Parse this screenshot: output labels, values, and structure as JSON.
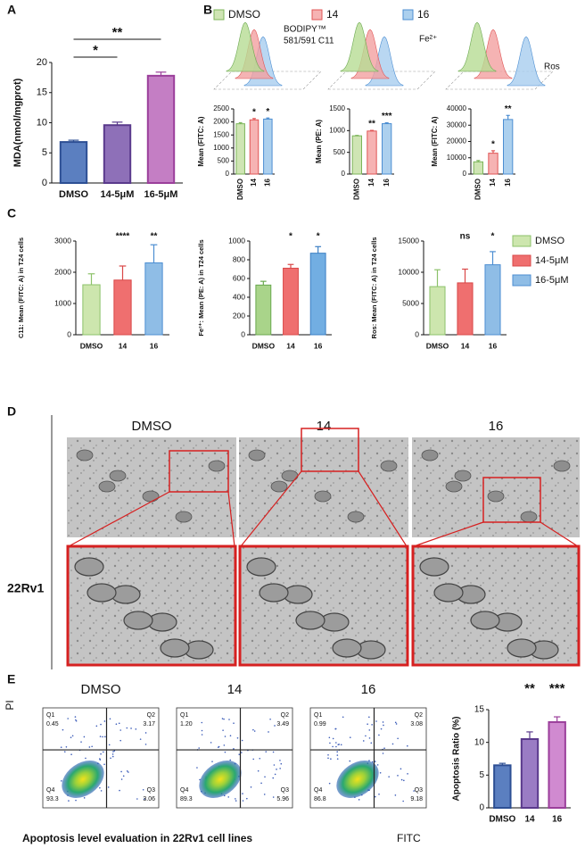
{
  "panels": [
    "A",
    "B",
    "C",
    "D",
    "E"
  ],
  "chart_data": [
    {
      "type": "bar",
      "ylabel": "MDA(nmol/mgprot)",
      "categories": [
        "DMSO",
        "14-5μM",
        "16-5μM"
      ],
      "values": [
        6.8,
        9.6,
        17.8
      ],
      "errors": [
        0.3,
        0.5,
        0.6
      ],
      "colors": [
        "#5b7fc0",
        "#8e70b8",
        "#c47ec4"
      ],
      "edge_colors": [
        "#2d4f94",
        "#5a3a8c",
        "#9b3f9b"
      ],
      "ylim": [
        0,
        20
      ],
      "yticks": [
        0,
        5,
        10,
        15,
        20
      ],
      "brackets": [
        "*",
        "**"
      ]
    },
    {
      "type": "bar",
      "ylabel": "Mean (FITC: A)",
      "categories": [
        "DMSO",
        "14",
        "16"
      ],
      "values": [
        1930,
        2080,
        2110
      ],
      "errors": [
        40,
        50,
        40
      ],
      "colors": [
        "#cfe5b4",
        "#f6b3b3",
        "#acd0ee"
      ],
      "edge_colors": [
        "#7cb55a",
        "#e05555",
        "#4c8ed2"
      ],
      "ylim": [
        0,
        2500
      ],
      "yticks": [
        0,
        500,
        1000,
        1500,
        2000,
        2500
      ],
      "annotations": [
        null,
        "*",
        "*"
      ]
    },
    {
      "type": "bar",
      "ylabel": "Mean (PE: A)",
      "categories": [
        "DMSO",
        "14",
        "16"
      ],
      "values": [
        880,
        990,
        1160
      ],
      "errors": [
        10,
        15,
        20
      ],
      "colors": [
        "#cfe5b4",
        "#f6b3b3",
        "#acd0ee"
      ],
      "edge_colors": [
        "#7cb55a",
        "#e05555",
        "#4c8ed2"
      ],
      "ylim": [
        0,
        1500
      ],
      "yticks": [
        0,
        500,
        1000,
        1500
      ],
      "annotations": [
        null,
        "**",
        "***"
      ]
    },
    {
      "type": "bar",
      "ylabel": "Mean (FITC: A)",
      "categories": [
        "DMSO",
        "14",
        "16"
      ],
      "values": [
        7500,
        12800,
        33500
      ],
      "errors": [
        800,
        1500,
        2500
      ],
      "colors": [
        "#cfe5b4",
        "#f6b3b3",
        "#acd0ee"
      ],
      "edge_colors": [
        "#7cb55a",
        "#e05555",
        "#4c8ed2"
      ],
      "ylim": [
        0,
        40000
      ],
      "yticks": [
        0,
        10000,
        20000,
        30000,
        40000
      ],
      "annotations": [
        null,
        "*",
        "**"
      ]
    },
    {
      "type": "bar",
      "ylabel": "C11: Mean (FITC: A) in T24 cells",
      "categories": [
        "DMSO",
        "14",
        "16"
      ],
      "values": [
        1600,
        1750,
        2300
      ],
      "errors": [
        350,
        450,
        580
      ],
      "colors": [
        "#cde6ae",
        "#ef6f6f",
        "#8fbde6"
      ],
      "edge_colors": [
        "#8cc26a",
        "#d94848",
        "#4c8ed2"
      ],
      "ylim": [
        0,
        3000
      ],
      "yticks": [
        0,
        1000,
        2000,
        3000
      ],
      "annotations": [
        null,
        "****",
        "**"
      ]
    },
    {
      "type": "bar",
      "ylabel": "Fe²⁺: Mean (PE: A) in T24 cells",
      "categories": [
        "DMSO",
        "14",
        "16"
      ],
      "values": [
        530,
        710,
        870
      ],
      "errors": [
        40,
        40,
        70
      ],
      "colors": [
        "#a9d48a",
        "#ef6f6f",
        "#72aee2"
      ],
      "edge_colors": [
        "#6aa84f",
        "#d94848",
        "#3b7fc4"
      ],
      "ylim": [
        0,
        1000
      ],
      "yticks": [
        0,
        200,
        400,
        600,
        800,
        1000
      ],
      "annotations": [
        null,
        "*",
        "*"
      ]
    },
    {
      "type": "bar",
      "ylabel": "Ros: Mean (FITC: A) in T24 cells",
      "categories": [
        "DMSO",
        "14",
        "16"
      ],
      "values": [
        7700,
        8300,
        11200
      ],
      "errors": [
        2700,
        2200,
        2100
      ],
      "colors": [
        "#cde6ae",
        "#ef6f6f",
        "#8fbde6"
      ],
      "edge_colors": [
        "#8cc26a",
        "#d94848",
        "#4c8ed2"
      ],
      "ylim": [
        0,
        15000
      ],
      "yticks": [
        0,
        5000,
        10000,
        15000
      ],
      "annotations": [
        null,
        "ns",
        "*"
      ]
    },
    {
      "type": "bar",
      "ylabel": "Apoptosis Ratio (%)",
      "categories": [
        "DMSO",
        "14",
        "16"
      ],
      "values": [
        6.5,
        10.5,
        13.1
      ],
      "errors": [
        0.3,
        1.1,
        0.8
      ],
      "colors": [
        "#5b7fc0",
        "#9a7cc4",
        "#d08ad0"
      ],
      "edge_colors": [
        "#2d4f94",
        "#5a3a8c",
        "#9b3f9b"
      ],
      "ylim": [
        0,
        15
      ],
      "yticks": [
        0,
        5,
        10,
        15
      ],
      "annotations": [
        null,
        "**",
        "***"
      ]
    }
  ],
  "histogram_header": {
    "legend": [
      {
        "name": "DMSO",
        "color": "#cfe5b4",
        "edge": "#7cb55a"
      },
      {
        "name": "14",
        "color": "#f6b3b3",
        "edge": "#e05555"
      },
      {
        "name": "16",
        "color": "#acd0ee",
        "edge": "#4c8ed2"
      }
    ],
    "probe": [
      "BODIPY™",
      "581/591 C11"
    ],
    "iron": "Fe²⁺",
    "ros": "Ros"
  },
  "c_legend": [
    {
      "name": "DMSO",
      "color": "#cde6ae",
      "edge": "#8cc26a"
    },
    {
      "name": "14-5μM",
      "color": "#ef6f6f",
      "edge": "#d94848"
    },
    {
      "name": "16-5μM",
      "color": "#8fbde6",
      "edge": "#4c8ed2"
    }
  ],
  "micrographs": {
    "cell_line": "22Rv1",
    "columns": [
      "DMSO",
      "14",
      "16"
    ]
  },
  "apoptosis": {
    "y_label": "PI",
    "x_label": "FITC",
    "caption": "Apoptosis level evaluation in 22Rv1 cell lines",
    "plots": [
      {
        "title": "DMSO",
        "quadrants": [
          [
            "Q1",
            "0.45"
          ],
          [
            "Q2",
            "3.17"
          ],
          [
            "Q3",
            "3.06"
          ],
          [
            "Q4",
            "93.3"
          ]
        ]
      },
      {
        "title": "14",
        "quadrants": [
          [
            "Q1",
            "1.20"
          ],
          [
            "Q2",
            "3.49"
          ],
          [
            "Q3",
            "5.96"
          ],
          [
            "Q4",
            "89.3"
          ]
        ]
      },
      {
        "title": "16",
        "quadrants": [
          [
            "Q1",
            "0.99"
          ],
          [
            "Q2",
            "3.08"
          ],
          [
            "Q3",
            "9.18"
          ],
          [
            "Q4",
            "86.8"
          ]
        ]
      }
    ]
  }
}
